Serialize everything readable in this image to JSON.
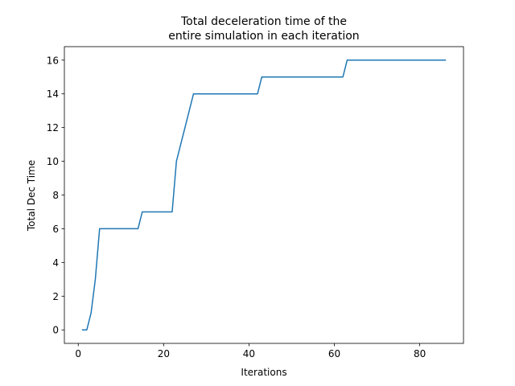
{
  "chart_data": {
    "type": "line",
    "title": [
      "Total deceleration time of the",
      "entire simulation in each iteration"
    ],
    "xlabel": "Iterations",
    "ylabel": "Total Dec Time",
    "xlim": [
      -3.25,
      90.25
    ],
    "ylim": [
      -0.8,
      16.8
    ],
    "xticks": [
      0,
      20,
      40,
      60,
      80
    ],
    "yticks": [
      0,
      2,
      4,
      6,
      8,
      10,
      12,
      14,
      16
    ],
    "grid": false,
    "series": [
      {
        "color": "#1f77b4",
        "x": [
          1,
          2,
          3,
          4,
          5,
          6,
          7,
          8,
          9,
          10,
          11,
          12,
          13,
          14,
          15,
          16,
          17,
          18,
          19,
          20,
          21,
          22,
          23,
          24,
          25,
          26,
          27,
          28,
          29,
          30,
          31,
          32,
          33,
          34,
          35,
          36,
          37,
          38,
          39,
          40,
          41,
          42,
          43,
          44,
          45,
          46,
          47,
          48,
          49,
          50,
          51,
          52,
          53,
          54,
          55,
          56,
          57,
          58,
          59,
          60,
          61,
          62,
          63,
          64,
          65,
          66,
          67,
          68,
          69,
          70,
          71,
          72,
          73,
          74,
          75,
          76,
          77,
          78,
          79,
          80,
          81,
          82,
          83,
          84,
          85,
          86
        ],
        "y": [
          0,
          0,
          1,
          3,
          6,
          6,
          6,
          6,
          6,
          6,
          6,
          6,
          6,
          6,
          7,
          7,
          7,
          7,
          7,
          7,
          7,
          7,
          10,
          11,
          12,
          13,
          14,
          14,
          14,
          14,
          14,
          14,
          14,
          14,
          14,
          14,
          14,
          14,
          14,
          14,
          14,
          14,
          15,
          15,
          15,
          15,
          15,
          15,
          15,
          15,
          15,
          15,
          15,
          15,
          15,
          15,
          15,
          15,
          15,
          15,
          15,
          15,
          16,
          16,
          16,
          16,
          16,
          16,
          16,
          16,
          16,
          16,
          16,
          16,
          16,
          16,
          16,
          16,
          16,
          16,
          16,
          16,
          16,
          16,
          16,
          16
        ]
      }
    ]
  }
}
